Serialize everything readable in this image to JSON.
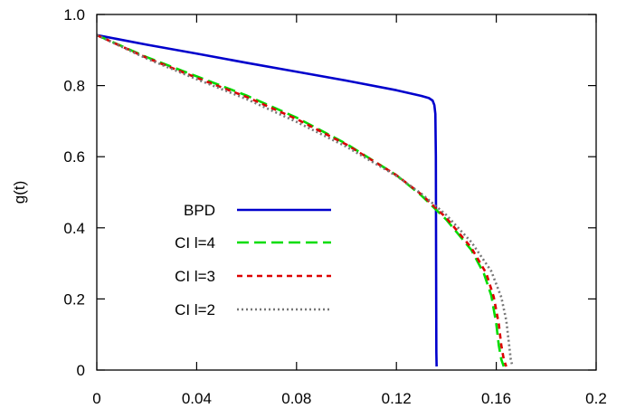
{
  "chart_data": {
    "type": "line",
    "title": "",
    "xlabel": "",
    "ylabel": "g(t)",
    "xlim": [
      0,
      0.2
    ],
    "ylim": [
      0,
      1.0
    ],
    "xticks": [
      0,
      0.04,
      0.08,
      0.12,
      0.16,
      0.2
    ],
    "xtick_labels": [
      "0",
      "0.04",
      "0.08",
      "0.12",
      "0.16",
      "0.2"
    ],
    "yticks": [
      0,
      0.2,
      0.4,
      0.6,
      0.8,
      1.0
    ],
    "ytick_labels": [
      "0",
      "0.2",
      "0.4",
      "0.6",
      "0.8",
      "1.0"
    ],
    "grid": false,
    "legend_position": "lower-left",
    "series": [
      {
        "name": "BPD",
        "color": "#0000cc",
        "dash": "solid",
        "x": [
          0,
          0.02,
          0.04,
          0.06,
          0.08,
          0.1,
          0.12,
          0.13,
          0.133,
          0.1345,
          0.1352,
          0.1356,
          0.1358,
          0.1359,
          0.136,
          0.1361
        ],
        "y": [
          0.942,
          0.915,
          0.89,
          0.864,
          0.839,
          0.814,
          0.787,
          0.771,
          0.765,
          0.758,
          0.745,
          0.72,
          0.6,
          0.3,
          0.05,
          0.01
        ]
      },
      {
        "name": "CI l=4",
        "color": "#00dd00",
        "dash": "long-dash",
        "x": [
          0,
          0.02,
          0.04,
          0.06,
          0.08,
          0.1,
          0.12,
          0.13,
          0.14,
          0.15,
          0.155,
          0.158,
          0.16,
          0.161,
          0.162,
          0.163
        ],
        "y": [
          0.942,
          0.88,
          0.826,
          0.772,
          0.71,
          0.636,
          0.548,
          0.491,
          0.423,
          0.338,
          0.272,
          0.21,
          0.13,
          0.07,
          0.03,
          0.01
        ]
      },
      {
        "name": "CI l=3",
        "color": "#dd0000",
        "dash": "short-dash",
        "x": [
          0,
          0.02,
          0.04,
          0.06,
          0.08,
          0.1,
          0.12,
          0.13,
          0.14,
          0.15,
          0.156,
          0.159,
          0.161,
          0.162,
          0.163,
          0.164
        ],
        "y": [
          0.942,
          0.878,
          0.822,
          0.768,
          0.706,
          0.634,
          0.548,
          0.494,
          0.428,
          0.344,
          0.272,
          0.205,
          0.13,
          0.07,
          0.03,
          0.01
        ]
      },
      {
        "name": "CI l=2",
        "color": "#777777",
        "dash": "dotted",
        "x": [
          0,
          0.02,
          0.04,
          0.06,
          0.08,
          0.1,
          0.12,
          0.13,
          0.14,
          0.15,
          0.158,
          0.162,
          0.164,
          0.165,
          0.1658,
          0.1665
        ],
        "y": [
          0.942,
          0.876,
          0.818,
          0.762,
          0.698,
          0.628,
          0.546,
          0.496,
          0.436,
          0.36,
          0.278,
          0.205,
          0.14,
          0.08,
          0.03,
          0.01
        ]
      }
    ]
  }
}
